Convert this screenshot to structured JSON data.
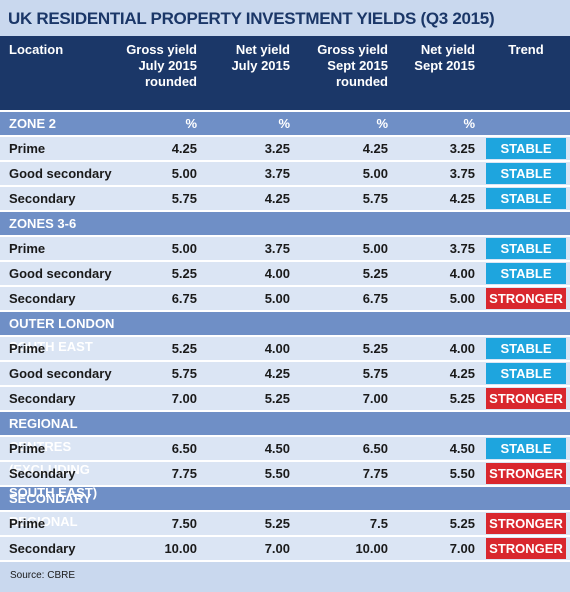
{
  "title": "UK RESIDENTIAL PROPERTY INVESTMENT YIELDS (Q3 2015)",
  "header": [
    "Location",
    "Gross yield\nJuly 2015\nrounded",
    "Net yield\nJuly 2015",
    "Gross yield\nSept 2015\nrounded",
    "Net yield\nSept 2015",
    "Trend"
  ],
  "trend_colors": {
    "STABLE": "#1ea5de",
    "STRONGER": "#d9272e"
  },
  "sections": [
    {
      "name": "ZONE 2",
      "units": [
        "%",
        "%",
        "%",
        "%"
      ],
      "rows": [
        [
          "Prime",
          "4.25",
          "3.25",
          "4.25",
          "3.25",
          "STABLE"
        ],
        [
          "Good secondary",
          "5.00",
          "3.75",
          "5.00",
          "3.75",
          "STABLE"
        ],
        [
          "Secondary",
          "5.75",
          "4.25",
          "5.75",
          "4.25",
          "STABLE"
        ]
      ]
    },
    {
      "name": "ZONES 3-6",
      "rows": [
        [
          "Prime",
          "5.00",
          "3.75",
          "5.00",
          "3.75",
          "STABLE"
        ],
        [
          "Good secondary",
          "5.25",
          "4.00",
          "5.25",
          "4.00",
          "STABLE"
        ],
        [
          "Secondary",
          "6.75",
          "5.00",
          "6.75",
          "5.00",
          "STRONGER"
        ]
      ]
    },
    {
      "name": "OUTER LONDON SOUTH EAST",
      "rows": [
        [
          "Prime",
          "5.25",
          "4.00",
          "5.25",
          "4.00",
          "STABLE"
        ],
        [
          "Good secondary",
          "5.75",
          "4.25",
          "5.75",
          "4.25",
          "STABLE"
        ],
        [
          "Secondary",
          "7.00",
          "5.25",
          "7.00",
          "5.25",
          "STRONGER"
        ]
      ]
    },
    {
      "name": "REGIONAL CENTRES (EXCLUDING SOUTH EAST)",
      "rows": [
        [
          "Prime",
          "6.50",
          "4.50",
          "6.50",
          "4.50",
          "STABLE"
        ],
        [
          "Secondary",
          "7.75",
          "5.50",
          "7.75",
          "5.50",
          "STRONGER"
        ]
      ]
    },
    {
      "name": "SECONDARY REGIONAL",
      "rows": [
        [
          "Prime",
          "7.50",
          "5.25",
          "7.5",
          "5.25",
          "STRONGER"
        ],
        [
          "Secondary",
          "10.00",
          "7.00",
          "10.00",
          "7.00",
          "STRONGER"
        ]
      ]
    }
  ],
  "source": "Source: CBRE"
}
